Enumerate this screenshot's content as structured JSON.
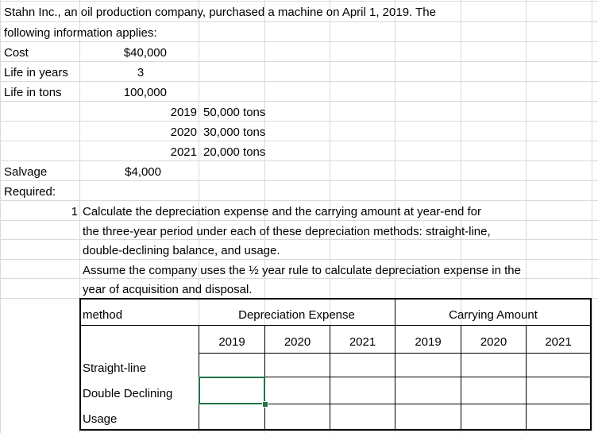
{
  "intro": {
    "line1": "Stahn Inc., an oil production company, purchased a machine on April 1, 2019. The",
    "line2": "following information applies:"
  },
  "facts": {
    "cost_label": "Cost",
    "cost_value": "$40,000",
    "life_years_label": "Life in years",
    "life_years_value": "3",
    "life_tons_label": "Life in tons",
    "life_tons_value": "100,000",
    "production": [
      {
        "year": "2019",
        "tons": "50,000 tons"
      },
      {
        "year": "2020",
        "tons": "30,000 tons"
      },
      {
        "year": "2021",
        "tons": "20,000 tons"
      }
    ],
    "salvage_label": "Salvage",
    "salvage_value": "$4,000"
  },
  "required": {
    "label": "Required:",
    "number": "1",
    "lines": [
      "Calculate the depreciation expense and the carrying amount at year-end for",
      "the three-year period under each of these depreciation methods: straight-line,",
      "double-declining balance, and usage.",
      "Assume the company uses the ½ year rule to calculate depreciation expense in the",
      "year of acquisition and disposal."
    ]
  },
  "table": {
    "method_header": "method",
    "dep_header": "Depreciation Expense",
    "carry_header": "Carrying Amount",
    "years": [
      "2019",
      "2020",
      "2021",
      "2019",
      "2020",
      "2021"
    ],
    "rows": [
      "Straight-line",
      "Double Declining",
      "Usage"
    ]
  },
  "colors": {
    "gridline": "#d9d9d9",
    "selection": "#217346"
  }
}
